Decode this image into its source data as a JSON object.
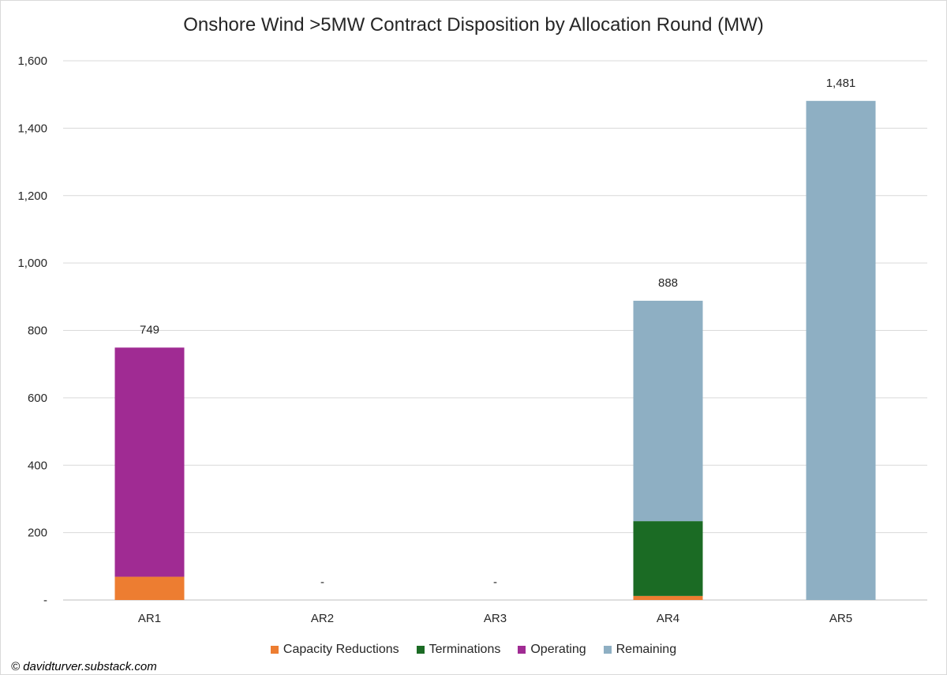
{
  "credit": "© davidturver.substack.com",
  "chart_data": {
    "type": "bar",
    "stacked": true,
    "title": "Onshore Wind >5MW Contract Disposition by Allocation Round (MW)",
    "xlabel": "",
    "ylabel": "",
    "categories": [
      "AR1",
      "AR2",
      "AR3",
      "AR4",
      "AR5"
    ],
    "ylim": [
      0,
      1600
    ],
    "yticks": [
      0,
      200,
      400,
      600,
      800,
      1000,
      1200,
      1400,
      1600
    ],
    "ytick_labels": [
      "-",
      "200",
      "400",
      "600",
      "800",
      "1,000",
      "1,200",
      "1,400",
      "1,600"
    ],
    "grid": true,
    "legend_position": "bottom",
    "series": [
      {
        "name": "Capacity Reductions",
        "color": "#ED7D31",
        "values": [
          69,
          0,
          0,
          12,
          0
        ]
      },
      {
        "name": "Terminations",
        "color": "#1B6B24",
        "values": [
          0,
          0,
          0,
          222,
          0
        ]
      },
      {
        "name": "Operating",
        "color": "#A02B93",
        "values": [
          680,
          0,
          0,
          0,
          0
        ]
      },
      {
        "name": "Remaining",
        "color": "#8EAFC3",
        "values": [
          0,
          0,
          0,
          654,
          1481
        ]
      }
    ],
    "total_labels": [
      "749",
      "-",
      "-",
      "888",
      "1,481"
    ]
  }
}
